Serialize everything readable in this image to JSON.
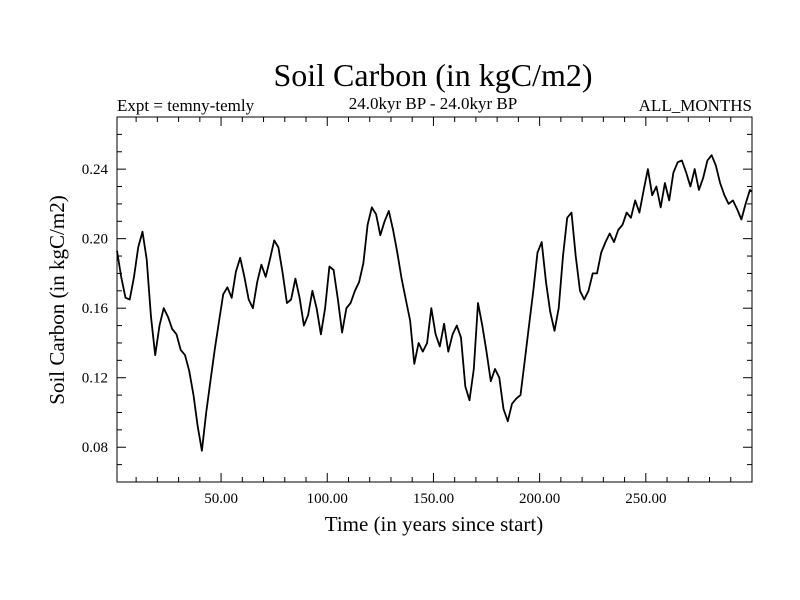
{
  "chart_data": {
    "type": "line",
    "title": "Soil Carbon (in kgC/m2)",
    "subtitle_left": "Expt = temny-temly",
    "subtitle_center": "24.0kyr BP - 24.0kyr BP",
    "subtitle_right": "ALL_MONTHS",
    "xlabel": "Time (in years since start)",
    "ylabel": "Soil Carbon (in kgC/m2)",
    "xlim": [
      1,
      300
    ],
    "ylim": [
      0.06,
      0.27
    ],
    "xticks": [
      50,
      100,
      150,
      200,
      250
    ],
    "xtick_labels": [
      "50.00",
      "100.00",
      "150.00",
      "200.00",
      "250.00"
    ],
    "yticks": [
      0.08,
      0.12,
      0.16,
      0.2,
      0.24
    ],
    "ytick_labels": [
      "0.08",
      "0.12",
      "0.16",
      "0.20",
      "0.24"
    ],
    "grid": false,
    "series": [
      {
        "name": "Soil Carbon",
        "color": "#000000",
        "x": [
          1,
          3,
          5,
          7,
          9,
          11,
          13,
          15,
          17,
          19,
          21,
          23,
          25,
          27,
          29,
          31,
          33,
          35,
          37,
          39,
          41,
          43,
          45,
          47,
          49,
          51,
          53,
          55,
          57,
          59,
          61,
          63,
          65,
          67,
          69,
          71,
          73,
          75,
          77,
          79,
          81,
          83,
          85,
          87,
          89,
          91,
          93,
          95,
          97,
          99,
          101,
          103,
          105,
          107,
          109,
          111,
          113,
          115,
          117,
          119,
          121,
          123,
          125,
          127,
          129,
          131,
          133,
          135,
          137,
          139,
          141,
          143,
          145,
          147,
          149,
          151,
          153,
          155,
          157,
          159,
          161,
          163,
          165,
          167,
          169,
          171,
          173,
          175,
          177,
          179,
          181,
          183,
          185,
          187,
          189,
          191,
          193,
          195,
          197,
          199,
          201,
          203,
          205,
          207,
          209,
          211,
          213,
          215,
          217,
          219,
          221,
          223,
          225,
          227,
          229,
          231,
          233,
          235,
          237,
          239,
          241,
          243,
          245,
          247,
          249,
          251,
          253,
          255,
          257,
          259,
          261,
          263,
          265,
          267,
          269,
          271,
          273,
          275,
          277,
          279,
          281,
          283,
          285,
          287,
          289,
          291,
          293,
          295,
          297,
          299,
          300
        ],
        "values": [
          0.193,
          0.178,
          0.166,
          0.165,
          0.178,
          0.195,
          0.204,
          0.188,
          0.155,
          0.133,
          0.15,
          0.16,
          0.155,
          0.148,
          0.145,
          0.136,
          0.133,
          0.124,
          0.11,
          0.092,
          0.078,
          0.1,
          0.118,
          0.136,
          0.152,
          0.168,
          0.172,
          0.166,
          0.181,
          0.189,
          0.178,
          0.165,
          0.16,
          0.175,
          0.185,
          0.178,
          0.188,
          0.199,
          0.195,
          0.18,
          0.163,
          0.165,
          0.177,
          0.166,
          0.15,
          0.156,
          0.17,
          0.16,
          0.145,
          0.16,
          0.184,
          0.182,
          0.165,
          0.146,
          0.16,
          0.163,
          0.17,
          0.175,
          0.186,
          0.208,
          0.218,
          0.214,
          0.202,
          0.21,
          0.216,
          0.205,
          0.192,
          0.177,
          0.165,
          0.153,
          0.128,
          0.14,
          0.135,
          0.14,
          0.16,
          0.145,
          0.138,
          0.151,
          0.135,
          0.145,
          0.15,
          0.143,
          0.115,
          0.107,
          0.125,
          0.163,
          0.15,
          0.135,
          0.118,
          0.125,
          0.12,
          0.102,
          0.095,
          0.105,
          0.108,
          0.11,
          0.13,
          0.15,
          0.17,
          0.192,
          0.198,
          0.175,
          0.158,
          0.147,
          0.16,
          0.19,
          0.212,
          0.215,
          0.19,
          0.17,
          0.165,
          0.17,
          0.18,
          0.18,
          0.192,
          0.198,
          0.203,
          0.198,
          0.205,
          0.208,
          0.215,
          0.212,
          0.222,
          0.215,
          0.228,
          0.24,
          0.225,
          0.23,
          0.218,
          0.232,
          0.222,
          0.238,
          0.244,
          0.245,
          0.238,
          0.23,
          0.24,
          0.228,
          0.235,
          0.245,
          0.248,
          0.242,
          0.232,
          0.225,
          0.22,
          0.222,
          0.217,
          0.211,
          0.22,
          0.228,
          0.227
        ]
      }
    ]
  }
}
